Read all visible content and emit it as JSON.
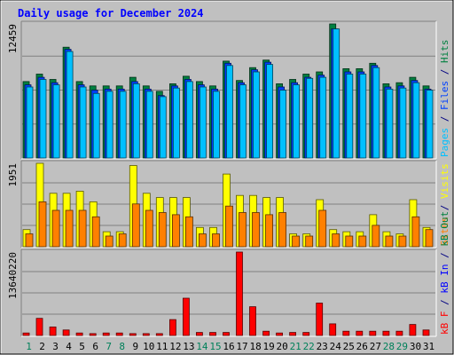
{
  "chart_data": {
    "type": "bar",
    "title": "Daily usage for December 2024",
    "categories": [
      "1",
      "2",
      "3",
      "4",
      "5",
      "6",
      "7",
      "8",
      "9",
      "10",
      "11",
      "12",
      "13",
      "14",
      "15",
      "16",
      "17",
      "18",
      "19",
      "20",
      "21",
      "22",
      "23",
      "24",
      "25",
      "26",
      "27",
      "28",
      "29",
      "30",
      "31"
    ],
    "weekend_days": [
      "1",
      "7",
      "8",
      "14",
      "15",
      "21",
      "22",
      "28",
      "29"
    ],
    "panels": [
      {
        "id": "hits_files_pages",
        "ymax_label": "12459",
        "ymax": 12459,
        "right_labels": [
          {
            "text": "Pages",
            "color": "#00c0ff"
          },
          {
            "text": " / ",
            "color": "#000080"
          },
          {
            "text": "Files",
            "color": "#0040ff"
          },
          {
            "text": " / ",
            "color": "#000080"
          },
          {
            "text": "Hits",
            "color": "#008040"
          }
        ],
        "series": [
          {
            "name": "Hits",
            "color": "#008040",
            "values": [
              7100,
              7800,
              7300,
              10300,
              7100,
              6700,
              6700,
              6700,
              7500,
              6700,
              6200,
              6900,
              7600,
              7100,
              6700,
              9000,
              7200,
              8400,
              9100,
              6900,
              7300,
              7800,
              8000,
              12459,
              8300,
              8300,
              8800,
              6900,
              7000,
              7500,
              6700
            ]
          },
          {
            "name": "Files",
            "color": "#0040ff",
            "values": [
              6800,
              7500,
              7000,
              10100,
              6800,
              6300,
              6400,
              6400,
              7100,
              6400,
              5800,
              6700,
              7300,
              6800,
              6400,
              8800,
              7000,
              8200,
              8900,
              6600,
              7000,
              7500,
              7700,
              12000,
              8000,
              8000,
              8600,
              6600,
              6700,
              7200,
              6400
            ]
          },
          {
            "name": "Pages",
            "color": "#00c0ff",
            "values": [
              6600,
              7300,
              6800,
              9900,
              6600,
              6000,
              6200,
              6200,
              6900,
              6200,
              5700,
              6500,
              7100,
              6600,
              6200,
              8600,
              6800,
              8000,
              8700,
              6300,
              6800,
              7400,
              7500,
              12000,
              7800,
              7800,
              8400,
              6400,
              6500,
              7000,
              6300
            ]
          }
        ]
      },
      {
        "id": "visits_sites",
        "ymax_label": "1951",
        "ymax": 1951,
        "right_labels": [
          {
            "text": "Sites",
            "color": "#ff8000"
          },
          {
            "text": " / ",
            "color": "#000080"
          },
          {
            "text": "Visits",
            "color": "#ffff00"
          }
        ],
        "series": [
          {
            "name": "Visits",
            "color": "#ffff00",
            "values": [
              400,
              1951,
              1250,
              1250,
              1300,
              1050,
              350,
              350,
              1900,
              1250,
              1150,
              1150,
              1150,
              450,
              450,
              1700,
              1200,
              1200,
              1150,
              1150,
              300,
              300,
              1100,
              400,
              350,
              350,
              750,
              350,
              300,
              1100,
              450
            ]
          },
          {
            "name": "Sites",
            "color": "#ff8000",
            "values": [
              300,
              1050,
              850,
              850,
              850,
              700,
              250,
              300,
              1000,
              850,
              800,
              750,
              700,
              300,
              300,
              950,
              800,
              800,
              750,
              800,
              250,
              250,
              850,
              300,
              250,
              250,
              500,
              250,
              250,
              700,
              400
            ]
          }
        ]
      },
      {
        "id": "kb",
        "ymax_label": "13640220",
        "ymax": 13640220,
        "right_labels": [
          {
            "text": "kB F",
            "color": "#ff0000"
          },
          {
            "text": " / ",
            "color": "#000080"
          },
          {
            "text": "kB In",
            "color": "#0000ff"
          },
          {
            "text": " / ",
            "color": "#000080"
          },
          {
            "text": "kB Out",
            "color": "#008040"
          }
        ],
        "series": [
          {
            "name": "kB F",
            "color": "#ff0000",
            "values": [
              400000,
              2800000,
              1400000,
              900000,
              400000,
              300000,
              400000,
              400000,
              300000,
              300000,
              300000,
              2600000,
              6100000,
              500000,
              500000,
              500000,
              13640220,
              4700000,
              700000,
              400000,
              500000,
              500000,
              5300000,
              1900000,
              700000,
              700000,
              700000,
              700000,
              700000,
              1800000,
              900000
            ]
          }
        ]
      }
    ]
  }
}
